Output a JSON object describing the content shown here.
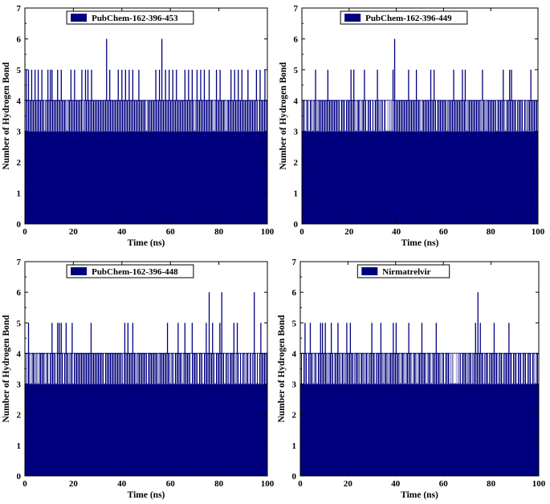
{
  "series_color": "#00007f",
  "chart_data": [
    {
      "type": "line",
      "legend": "PubChem-162-396-453",
      "xlabel": "Time (ns)",
      "ylabel": "Number of Hydrogen Bond",
      "xlim": [
        0,
        100
      ],
      "ylim": [
        0,
        7
      ],
      "xticks": [
        "0",
        "20",
        "40",
        "60",
        "80",
        "100"
      ],
      "yticks": [
        "0",
        "1",
        "2",
        "3",
        "4",
        "5",
        "6",
        "7"
      ],
      "legend_position": "top-center",
      "series": [
        {
          "baseline": 4,
          "floor": 3,
          "spikes": [
            {
              "x": 0.6,
              "y": 5
            },
            {
              "x": 1.5,
              "y": 5
            },
            {
              "x": 2.8,
              "y": 5
            },
            {
              "x": 4.2,
              "y": 5
            },
            {
              "x": 5.5,
              "y": 5
            },
            {
              "x": 7.0,
              "y": 5
            },
            {
              "x": 9.5,
              "y": 5
            },
            {
              "x": 10.5,
              "y": 5
            },
            {
              "x": 11.2,
              "y": 5
            },
            {
              "x": 13.5,
              "y": 5
            },
            {
              "x": 15.0,
              "y": 5
            },
            {
              "x": 19.0,
              "y": 5
            },
            {
              "x": 20.5,
              "y": 5
            },
            {
              "x": 23.5,
              "y": 5
            },
            {
              "x": 25.0,
              "y": 5
            },
            {
              "x": 26.0,
              "y": 5
            },
            {
              "x": 27.5,
              "y": 5
            },
            {
              "x": 33.7,
              "y": 6
            },
            {
              "x": 35.0,
              "y": 5
            },
            {
              "x": 38.5,
              "y": 5
            },
            {
              "x": 40.0,
              "y": 5
            },
            {
              "x": 41.5,
              "y": 5
            },
            {
              "x": 43.0,
              "y": 5
            },
            {
              "x": 44.5,
              "y": 5
            },
            {
              "x": 47.0,
              "y": 5
            },
            {
              "x": 54.0,
              "y": 5
            },
            {
              "x": 55.5,
              "y": 5
            },
            {
              "x": 56.5,
              "y": 6
            },
            {
              "x": 58.0,
              "y": 5
            },
            {
              "x": 59.5,
              "y": 5
            },
            {
              "x": 61.0,
              "y": 5
            },
            {
              "x": 62.5,
              "y": 5
            },
            {
              "x": 66.0,
              "y": 5
            },
            {
              "x": 67.5,
              "y": 5
            },
            {
              "x": 69.0,
              "y": 5
            },
            {
              "x": 71.0,
              "y": 5
            },
            {
              "x": 72.5,
              "y": 5
            },
            {
              "x": 74.0,
              "y": 5
            },
            {
              "x": 76.0,
              "y": 5
            },
            {
              "x": 79.0,
              "y": 5
            },
            {
              "x": 80.5,
              "y": 5
            },
            {
              "x": 85.0,
              "y": 5
            },
            {
              "x": 86.5,
              "y": 5
            },
            {
              "x": 88.0,
              "y": 5
            },
            {
              "x": 89.5,
              "y": 5
            },
            {
              "x": 92.0,
              "y": 5
            },
            {
              "x": 95.5,
              "y": 5
            },
            {
              "x": 97.0,
              "y": 5
            },
            {
              "x": 99.0,
              "y": 5
            }
          ],
          "dips": [
            {
              "x": 8.2,
              "y": 3
            },
            {
              "x": 17.3,
              "y": 3
            },
            {
              "x": 24.1,
              "y": 3
            },
            {
              "x": 50.2,
              "y": 3
            },
            {
              "x": 70.1,
              "y": 3
            },
            {
              "x": 78.0,
              "y": 3
            },
            {
              "x": 83.0,
              "y": 3
            },
            {
              "x": 96.2,
              "y": 3
            }
          ]
        }
      ]
    },
    {
      "type": "line",
      "legend": "PubChem-162-396-449",
      "xlabel": "Time (ns)",
      "ylabel": "Number of Hydrogen Bond",
      "xlim": [
        0,
        100
      ],
      "ylim": [
        0,
        7
      ],
      "xticks": [
        "0",
        "20",
        "40",
        "60",
        "80",
        "100"
      ],
      "yticks": [
        "0",
        "1",
        "2",
        "3",
        "4",
        "5",
        "6",
        "7"
      ],
      "legend_position": "top-center",
      "series": [
        {
          "baseline": 4,
          "floor": 3,
          "spikes": [
            {
              "x": 5.8,
              "y": 5
            },
            {
              "x": 11.0,
              "y": 5
            },
            {
              "x": 20.8,
              "y": 5
            },
            {
              "x": 22.0,
              "y": 5
            },
            {
              "x": 26.5,
              "y": 5
            },
            {
              "x": 32.0,
              "y": 5
            },
            {
              "x": 38.6,
              "y": 5
            },
            {
              "x": 39.3,
              "y": 6
            },
            {
              "x": 45.2,
              "y": 5
            },
            {
              "x": 48.5,
              "y": 5
            },
            {
              "x": 54.6,
              "y": 5
            },
            {
              "x": 56.0,
              "y": 5
            },
            {
              "x": 64.3,
              "y": 5
            },
            {
              "x": 68.0,
              "y": 5
            },
            {
              "x": 69.2,
              "y": 5
            },
            {
              "x": 76.5,
              "y": 5
            },
            {
              "x": 85.3,
              "y": 5
            },
            {
              "x": 88.0,
              "y": 5
            },
            {
              "x": 88.8,
              "y": 5
            },
            {
              "x": 97.0,
              "y": 5
            }
          ],
          "dips": [
            {
              "x": 1.5,
              "y": 3
            },
            {
              "x": 3.0,
              "y": 3
            },
            {
              "x": 4.5,
              "y": 3
            },
            {
              "x": 6.5,
              "y": 3
            },
            {
              "x": 16.2,
              "y": 3
            },
            {
              "x": 18.5,
              "y": 3
            },
            {
              "x": 23.0,
              "y": 3
            },
            {
              "x": 25.0,
              "y": 3
            },
            {
              "x": 27.5,
              "y": 3
            },
            {
              "x": 29.5,
              "y": 3
            },
            {
              "x": 30.5,
              "y": 3
            },
            {
              "x": 33.0,
              "y": 3
            },
            {
              "x": 34.5,
              "y": 3
            },
            {
              "x": 35.7,
              "y": 3
            },
            {
              "x": 36.3,
              "y": 3
            },
            {
              "x": 36.9,
              "y": 3
            },
            {
              "x": 37.5,
              "y": 3
            },
            {
              "x": 38.1,
              "y": 3
            },
            {
              "x": 50.5,
              "y": 3
            },
            {
              "x": 57.0,
              "y": 3
            },
            {
              "x": 61.5,
              "y": 3
            },
            {
              "x": 70.0,
              "y": 3
            },
            {
              "x": 76.2,
              "y": 3
            },
            {
              "x": 77.9,
              "y": 3
            },
            {
              "x": 82.5,
              "y": 3
            },
            {
              "x": 86.2,
              "y": 3
            },
            {
              "x": 91.0,
              "y": 3
            },
            {
              "x": 93.8,
              "y": 3
            },
            {
              "x": 95.2,
              "y": 3
            }
          ]
        }
      ]
    },
    {
      "type": "line",
      "legend": "PubChem-162-396-448",
      "xlabel": "Time (ns)",
      "ylabel": "Number of Hydrogen Bond",
      "xlim": [
        0,
        100
      ],
      "ylim": [
        0,
        7
      ],
      "xticks": [
        "0",
        "20",
        "40",
        "60",
        "80",
        "100"
      ],
      "yticks": [
        "0",
        "1",
        "2",
        "3",
        "4",
        "5",
        "6",
        "7"
      ],
      "legend_position": "top-center",
      "series": [
        {
          "baseline": 4,
          "floor": 3,
          "spikes": [
            {
              "x": 1.5,
              "y": 5
            },
            {
              "x": 11.2,
              "y": 5
            },
            {
              "x": 13.5,
              "y": 5
            },
            {
              "x": 14.2,
              "y": 5
            },
            {
              "x": 15.0,
              "y": 5
            },
            {
              "x": 17.0,
              "y": 5
            },
            {
              "x": 19.5,
              "y": 5
            },
            {
              "x": 27.3,
              "y": 5
            },
            {
              "x": 41.2,
              "y": 5
            },
            {
              "x": 42.5,
              "y": 5
            },
            {
              "x": 44.5,
              "y": 5
            },
            {
              "x": 58.8,
              "y": 5
            },
            {
              "x": 63.2,
              "y": 5
            },
            {
              "x": 66.0,
              "y": 5
            },
            {
              "x": 69.0,
              "y": 5
            },
            {
              "x": 74.8,
              "y": 5
            },
            {
              "x": 76.0,
              "y": 6
            },
            {
              "x": 77.4,
              "y": 5
            },
            {
              "x": 80.4,
              "y": 5
            },
            {
              "x": 81.2,
              "y": 6
            },
            {
              "x": 86.2,
              "y": 5
            },
            {
              "x": 87.6,
              "y": 5
            },
            {
              "x": 94.6,
              "y": 6
            },
            {
              "x": 97.3,
              "y": 5
            }
          ],
          "dips": [
            {
              "x": 0.8,
              "y": 3
            },
            {
              "x": 2.5,
              "y": 3
            },
            {
              "x": 4.3,
              "y": 3
            },
            {
              "x": 5.5,
              "y": 3
            },
            {
              "x": 8.5,
              "y": 3
            },
            {
              "x": 10.0,
              "y": 3
            },
            {
              "x": 12.8,
              "y": 3
            },
            {
              "x": 16.0,
              "y": 3
            },
            {
              "x": 18.2,
              "y": 3
            },
            {
              "x": 20.0,
              "y": 3
            },
            {
              "x": 32.8,
              "y": 3
            },
            {
              "x": 40.5,
              "y": 3
            },
            {
              "x": 46.0,
              "y": 3
            },
            {
              "x": 50.5,
              "y": 3
            },
            {
              "x": 55.0,
              "y": 3
            },
            {
              "x": 60.0,
              "y": 3
            },
            {
              "x": 61.5,
              "y": 3
            },
            {
              "x": 65.0,
              "y": 3
            },
            {
              "x": 68.5,
              "y": 3
            },
            {
              "x": 71.5,
              "y": 3
            },
            {
              "x": 73.5,
              "y": 3
            },
            {
              "x": 78.5,
              "y": 3
            },
            {
              "x": 82.5,
              "y": 3
            },
            {
              "x": 84.2,
              "y": 3
            },
            {
              "x": 86.8,
              "y": 3
            },
            {
              "x": 88.5,
              "y": 3
            },
            {
              "x": 89.5,
              "y": 3
            },
            {
              "x": 91.0,
              "y": 3
            },
            {
              "x": 92.5,
              "y": 3
            },
            {
              "x": 93.6,
              "y": 3
            },
            {
              "x": 95.5,
              "y": 3
            },
            {
              "x": 96.4,
              "y": 3
            }
          ]
        }
      ]
    },
    {
      "type": "line",
      "legend": "Nirmatrelvir",
      "xlabel": "Time (ns)",
      "ylabel": "Number of Hydrogen Bond",
      "xlim": [
        0,
        100
      ],
      "ylim": [
        0,
        7
      ],
      "xticks": [
        "0",
        "20",
        "40",
        "60",
        "80",
        "100"
      ],
      "yticks": [
        "0",
        "1",
        "2",
        "3",
        "4",
        "5",
        "6",
        "7"
      ],
      "legend_position": "top-center",
      "series": [
        {
          "baseline": 4,
          "floor": 3,
          "spikes": [
            {
              "x": 2.0,
              "y": 5
            },
            {
              "x": 4.2,
              "y": 5
            },
            {
              "x": 8.5,
              "y": 5
            },
            {
              "x": 9.3,
              "y": 5
            },
            {
              "x": 10.5,
              "y": 5
            },
            {
              "x": 13.0,
              "y": 5
            },
            {
              "x": 15.8,
              "y": 5
            },
            {
              "x": 19.5,
              "y": 5
            },
            {
              "x": 21.0,
              "y": 5
            },
            {
              "x": 30.0,
              "y": 5
            },
            {
              "x": 33.8,
              "y": 5
            },
            {
              "x": 39.0,
              "y": 5
            },
            {
              "x": 40.2,
              "y": 5
            },
            {
              "x": 45.5,
              "y": 5
            },
            {
              "x": 51.0,
              "y": 5
            },
            {
              "x": 57.0,
              "y": 5
            },
            {
              "x": 73.5,
              "y": 5
            },
            {
              "x": 74.5,
              "y": 6
            },
            {
              "x": 75.5,
              "y": 5
            },
            {
              "x": 81.3,
              "y": 5
            },
            {
              "x": 87.5,
              "y": 5
            }
          ],
          "dips": [
            {
              "x": 1.0,
              "y": 3
            },
            {
              "x": 3.0,
              "y": 3
            },
            {
              "x": 5.5,
              "y": 3
            },
            {
              "x": 7.0,
              "y": 3
            },
            {
              "x": 11.5,
              "y": 3
            },
            {
              "x": 14.0,
              "y": 3
            },
            {
              "x": 17.0,
              "y": 3
            },
            {
              "x": 18.5,
              "y": 3
            },
            {
              "x": 22.5,
              "y": 3
            },
            {
              "x": 25.0,
              "y": 3
            },
            {
              "x": 27.0,
              "y": 3
            },
            {
              "x": 28.5,
              "y": 3
            },
            {
              "x": 31.5,
              "y": 3
            },
            {
              "x": 35.0,
              "y": 3
            },
            {
              "x": 37.0,
              "y": 3
            },
            {
              "x": 42.0,
              "y": 3
            },
            {
              "x": 44.0,
              "y": 3
            },
            {
              "x": 47.0,
              "y": 3
            },
            {
              "x": 49.0,
              "y": 3
            },
            {
              "x": 53.0,
              "y": 3
            },
            {
              "x": 55.0,
              "y": 3
            },
            {
              "x": 59.0,
              "y": 3
            },
            {
              "x": 60.5,
              "y": 3
            },
            {
              "x": 62.8,
              "y": 3
            },
            {
              "x": 63.4,
              "y": 3
            },
            {
              "x": 64.0,
              "y": 3
            },
            {
              "x": 64.6,
              "y": 3
            },
            {
              "x": 65.2,
              "y": 3
            },
            {
              "x": 65.8,
              "y": 3
            },
            {
              "x": 66.4,
              "y": 3
            },
            {
              "x": 67.5,
              "y": 3
            },
            {
              "x": 70.0,
              "y": 3
            },
            {
              "x": 72.0,
              "y": 3
            },
            {
              "x": 77.0,
              "y": 3
            },
            {
              "x": 79.0,
              "y": 3
            },
            {
              "x": 83.0,
              "y": 3
            },
            {
              "x": 85.0,
              "y": 3
            },
            {
              "x": 89.0,
              "y": 3
            },
            {
              "x": 91.0,
              "y": 3
            },
            {
              "x": 93.0,
              "y": 3
            },
            {
              "x": 95.0,
              "y": 3
            },
            {
              "x": 97.0,
              "y": 3
            },
            {
              "x": 98.5,
              "y": 3
            }
          ]
        }
      ]
    }
  ]
}
